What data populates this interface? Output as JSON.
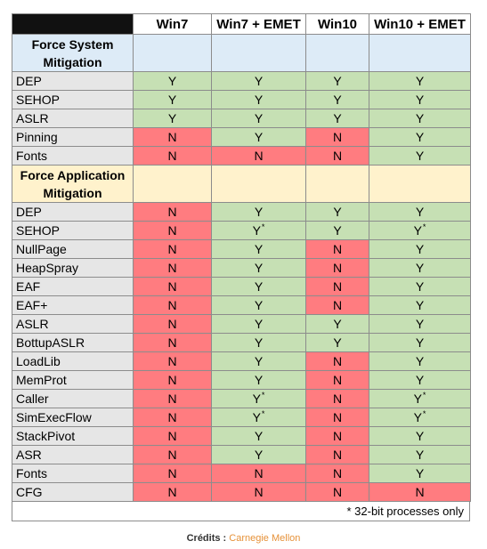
{
  "header": {
    "columns": [
      "Win7",
      "Win7 + EMET",
      "Win10",
      "Win10 + EMET"
    ]
  },
  "sections": [
    {
      "title_line1": "Force System",
      "title_line2": "Mitigation",
      "rows": [
        {
          "label": "DEP",
          "values": [
            "Y",
            "Y",
            "Y",
            "Y"
          ],
          "notes": [
            false,
            false,
            false,
            false
          ]
        },
        {
          "label": "SEHOP",
          "values": [
            "Y",
            "Y",
            "Y",
            "Y"
          ],
          "notes": [
            false,
            false,
            false,
            false
          ]
        },
        {
          "label": "ASLR",
          "values": [
            "Y",
            "Y",
            "Y",
            "Y"
          ],
          "notes": [
            false,
            false,
            false,
            false
          ]
        },
        {
          "label": "Pinning",
          "values": [
            "N",
            "Y",
            "N",
            "Y"
          ],
          "notes": [
            false,
            false,
            false,
            false
          ]
        },
        {
          "label": "Fonts",
          "values": [
            "N",
            "N",
            "N",
            "Y"
          ],
          "notes": [
            false,
            false,
            false,
            false
          ]
        }
      ]
    },
    {
      "title_line1": "Force Application",
      "title_line2": "Mitigation",
      "rows": [
        {
          "label": "DEP",
          "values": [
            "N",
            "Y",
            "Y",
            "Y"
          ],
          "notes": [
            false,
            false,
            false,
            false
          ]
        },
        {
          "label": "SEHOP",
          "values": [
            "N",
            "Y",
            "Y",
            "Y"
          ],
          "notes": [
            false,
            true,
            false,
            true
          ]
        },
        {
          "label": "NullPage",
          "values": [
            "N",
            "Y",
            "N",
            "Y"
          ],
          "notes": [
            false,
            false,
            false,
            false
          ]
        },
        {
          "label": "HeapSpray",
          "values": [
            "N",
            "Y",
            "N",
            "Y"
          ],
          "notes": [
            false,
            false,
            false,
            false
          ]
        },
        {
          "label": "EAF",
          "values": [
            "N",
            "Y",
            "N",
            "Y"
          ],
          "notes": [
            false,
            false,
            false,
            false
          ]
        },
        {
          "label": "EAF+",
          "values": [
            "N",
            "Y",
            "N",
            "Y"
          ],
          "notes": [
            false,
            false,
            false,
            false
          ]
        },
        {
          "label": "ASLR",
          "values": [
            "N",
            "Y",
            "Y",
            "Y"
          ],
          "notes": [
            false,
            false,
            false,
            false
          ]
        },
        {
          "label": "BottupASLR",
          "values": [
            "N",
            "Y",
            "Y",
            "Y"
          ],
          "notes": [
            false,
            false,
            false,
            false
          ]
        },
        {
          "label": "LoadLib",
          "values": [
            "N",
            "Y",
            "N",
            "Y"
          ],
          "notes": [
            false,
            false,
            false,
            false
          ]
        },
        {
          "label": "MemProt",
          "values": [
            "N",
            "Y",
            "N",
            "Y"
          ],
          "notes": [
            false,
            false,
            false,
            false
          ]
        },
        {
          "label": "Caller",
          "values": [
            "N",
            "Y",
            "N",
            "Y"
          ],
          "notes": [
            false,
            true,
            false,
            true
          ]
        },
        {
          "label": "SimExecFlow",
          "values": [
            "N",
            "Y",
            "N",
            "Y"
          ],
          "notes": [
            false,
            true,
            false,
            true
          ]
        },
        {
          "label": "StackPivot",
          "values": [
            "N",
            "Y",
            "N",
            "Y"
          ],
          "notes": [
            false,
            false,
            false,
            false
          ]
        },
        {
          "label": "ASR",
          "values": [
            "N",
            "Y",
            "N",
            "Y"
          ],
          "notes": [
            false,
            false,
            false,
            false
          ]
        },
        {
          "label": "Fonts",
          "values": [
            "N",
            "N",
            "N",
            "Y"
          ],
          "notes": [
            false,
            false,
            false,
            false
          ]
        },
        {
          "label": "CFG",
          "values": [
            "N",
            "N",
            "N",
            "N"
          ],
          "notes": [
            false,
            false,
            false,
            false
          ]
        }
      ]
    }
  ],
  "note_mark": "*",
  "footnote": "* 32-bit processes only",
  "credits": {
    "label": "Crédits : ",
    "source": "Carnegie Mellon"
  },
  "colors": {
    "yes": "#c6e0b4",
    "no": "#ff7c80",
    "system_section": "#ddebf7",
    "application_section": "#fff2cc"
  }
}
